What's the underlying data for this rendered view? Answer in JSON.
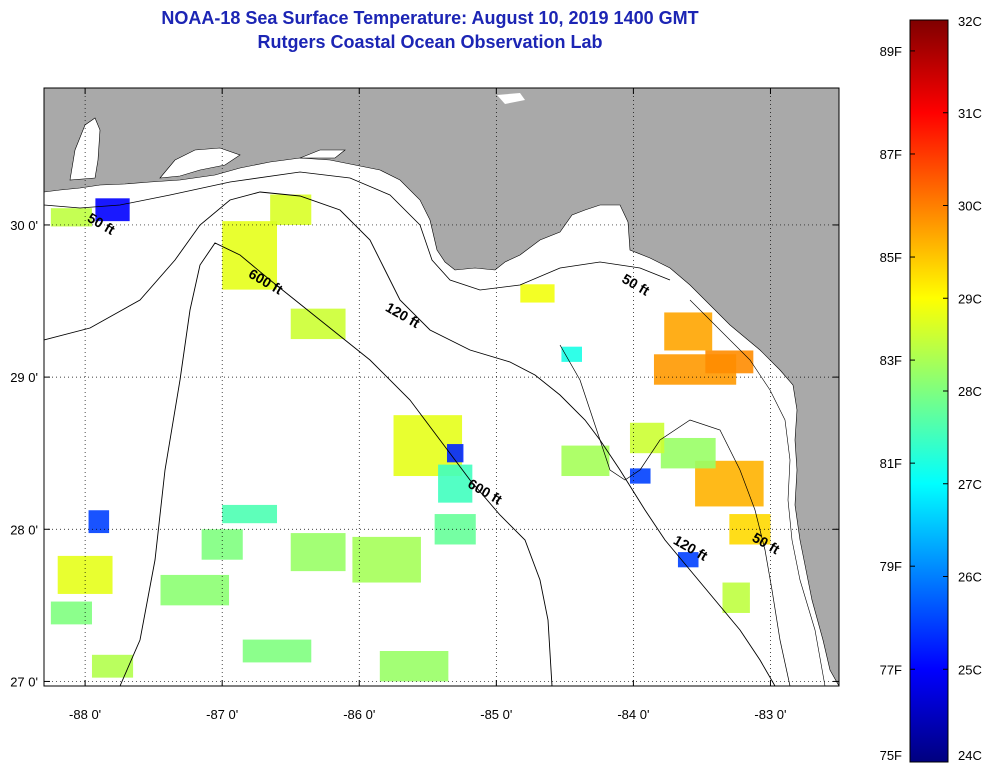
{
  "title": {
    "line1": "NOAA-18 Sea Surface Temperature:  August 10, 2019 1400 GMT",
    "line2": "Rutgers Coastal Ocean Observation Lab"
  },
  "map": {
    "lon_range": [
      -88.3,
      -82.5
    ],
    "lat_range": [
      26.97,
      30.9
    ],
    "lon_ticks": [
      {
        "value": -88,
        "label": "-88 0'"
      },
      {
        "value": -87,
        "label": "-87 0'"
      },
      {
        "value": -86,
        "label": "-86 0'"
      },
      {
        "value": -85,
        "label": "-85 0'"
      },
      {
        "value": -84,
        "label": "-84 0'"
      },
      {
        "value": -83,
        "label": "-83 0'"
      }
    ],
    "lat_ticks": [
      {
        "value": 27,
        "label": "27 0'"
      },
      {
        "value": 28,
        "label": "28 0'"
      },
      {
        "value": 29,
        "label": "29 0'"
      },
      {
        "value": 30,
        "label": "30 0'"
      }
    ],
    "grid": true,
    "land_color": "#a9a9a9",
    "contour_labels": [
      {
        "text": "50 ft",
        "lon": -87.9,
        "lat": 29.98
      },
      {
        "text": "600 ft",
        "lon": -86.7,
        "lat": 29.6
      },
      {
        "text": "120 ft",
        "lon": -85.7,
        "lat": 29.38
      },
      {
        "text": "50 ft",
        "lon": -84.0,
        "lat": 29.58
      },
      {
        "text": "600 ft",
        "lon": -85.1,
        "lat": 28.22
      },
      {
        "text": "120 ft",
        "lon": -83.6,
        "lat": 27.85
      },
      {
        "text": "50 ft",
        "lon": -83.05,
        "lat": 27.88
      }
    ]
  },
  "colorbar": {
    "colors": [
      "#00007f",
      "#0000ff",
      "#007fff",
      "#00ffff",
      "#7fff7f",
      "#ffff00",
      "#ff7f00",
      "#ff0000",
      "#7f0000"
    ],
    "celsius": [
      {
        "value": 24,
        "label": "24C"
      },
      {
        "value": 25,
        "label": "25C"
      },
      {
        "value": 26,
        "label": "26C"
      },
      {
        "value": 27,
        "label": "27C"
      },
      {
        "value": 28,
        "label": "28C"
      },
      {
        "value": 29,
        "label": "29C"
      },
      {
        "value": 30,
        "label": "30C"
      },
      {
        "value": 31,
        "label": "31C"
      },
      {
        "value": 32,
        "label": "32C"
      }
    ],
    "fahrenheit": [
      {
        "value": 75,
        "label": "75F"
      },
      {
        "value": 77,
        "label": "77F"
      },
      {
        "value": 79,
        "label": "79F"
      },
      {
        "value": 81,
        "label": "81F"
      },
      {
        "value": 83,
        "label": "83F"
      },
      {
        "value": 85,
        "label": "85F"
      },
      {
        "value": 87,
        "label": "87F"
      },
      {
        "value": 89,
        "label": "89F"
      }
    ]
  },
  "sst_patches": [
    {
      "lon": -87.8,
      "lat": 30.1,
      "w": 0.25,
      "h": 0.15,
      "t": 25.0
    },
    {
      "lon": -88.1,
      "lat": 30.05,
      "w": 0.3,
      "h": 0.12,
      "t": 28.5
    },
    {
      "lon": -86.8,
      "lat": 29.8,
      "w": 0.4,
      "h": 0.45,
      "t": 28.8
    },
    {
      "lon": -86.5,
      "lat": 30.1,
      "w": 0.3,
      "h": 0.2,
      "t": 28.7
    },
    {
      "lon": -86.3,
      "lat": 29.35,
      "w": 0.4,
      "h": 0.2,
      "t": 28.6
    },
    {
      "lon": -85.5,
      "lat": 28.55,
      "w": 0.5,
      "h": 0.4,
      "t": 28.8
    },
    {
      "lon": -85.3,
      "lat": 28.3,
      "w": 0.25,
      "h": 0.25,
      "t": 27.5
    },
    {
      "lon": -85.3,
      "lat": 28.0,
      "w": 0.3,
      "h": 0.2,
      "t": 27.8
    },
    {
      "lon": -85.8,
      "lat": 27.8,
      "w": 0.5,
      "h": 0.3,
      "t": 28.3
    },
    {
      "lon": -86.3,
      "lat": 27.85,
      "w": 0.4,
      "h": 0.25,
      "t": 28.2
    },
    {
      "lon": -87.0,
      "lat": 27.9,
      "w": 0.3,
      "h": 0.2,
      "t": 28.0
    },
    {
      "lon": -87.2,
      "lat": 27.6,
      "w": 0.5,
      "h": 0.2,
      "t": 28.1
    },
    {
      "lon": -88.0,
      "lat": 27.7,
      "w": 0.4,
      "h": 0.25,
      "t": 28.8
    },
    {
      "lon": -88.1,
      "lat": 27.45,
      "w": 0.3,
      "h": 0.15,
      "t": 28.0
    },
    {
      "lon": -87.9,
      "lat": 28.05,
      "w": 0.15,
      "h": 0.15,
      "t": 25.5
    },
    {
      "lon": -85.6,
      "lat": 27.1,
      "w": 0.5,
      "h": 0.2,
      "t": 28.2
    },
    {
      "lon": -86.6,
      "lat": 27.2,
      "w": 0.5,
      "h": 0.15,
      "t": 28.0
    },
    {
      "lon": -87.8,
      "lat": 27.1,
      "w": 0.3,
      "h": 0.15,
      "t": 28.4
    },
    {
      "lon": -86.8,
      "lat": 28.1,
      "w": 0.4,
      "h": 0.12,
      "t": 27.6
    },
    {
      "lon": -84.35,
      "lat": 28.45,
      "w": 0.35,
      "h": 0.2,
      "t": 28.3
    },
    {
      "lon": -83.55,
      "lat": 29.05,
      "w": 0.6,
      "h": 0.2,
      "t": 29.8
    },
    {
      "lon": -83.3,
      "lat": 29.1,
      "w": 0.35,
      "h": 0.15,
      "t": 29.9
    },
    {
      "lon": -83.6,
      "lat": 29.3,
      "w": 0.35,
      "h": 0.25,
      "t": 29.7
    },
    {
      "lon": -83.3,
      "lat": 28.3,
      "w": 0.5,
      "h": 0.3,
      "t": 29.6
    },
    {
      "lon": -83.6,
      "lat": 28.5,
      "w": 0.4,
      "h": 0.2,
      "t": 28.2
    },
    {
      "lon": -83.15,
      "lat": 28.0,
      "w": 0.3,
      "h": 0.2,
      "t": 29.3
    },
    {
      "lon": -83.25,
      "lat": 27.55,
      "w": 0.2,
      "h": 0.2,
      "t": 28.5
    },
    {
      "lon": -83.9,
      "lat": 28.6,
      "w": 0.25,
      "h": 0.2,
      "t": 28.6
    },
    {
      "lon": -83.95,
      "lat": 28.35,
      "w": 0.15,
      "h": 0.1,
      "t": 25.5
    },
    {
      "lon": -84.7,
      "lat": 29.55,
      "w": 0.25,
      "h": 0.12,
      "t": 28.9
    },
    {
      "lon": -84.45,
      "lat": 29.15,
      "w": 0.15,
      "h": 0.1,
      "t": 27.2
    },
    {
      "lon": -83.6,
      "lat": 27.8,
      "w": 0.15,
      "h": 0.1,
      "t": 25.5
    },
    {
      "lon": -85.3,
      "lat": 28.5,
      "w": 0.12,
      "h": 0.12,
      "t": 25.3
    }
  ]
}
